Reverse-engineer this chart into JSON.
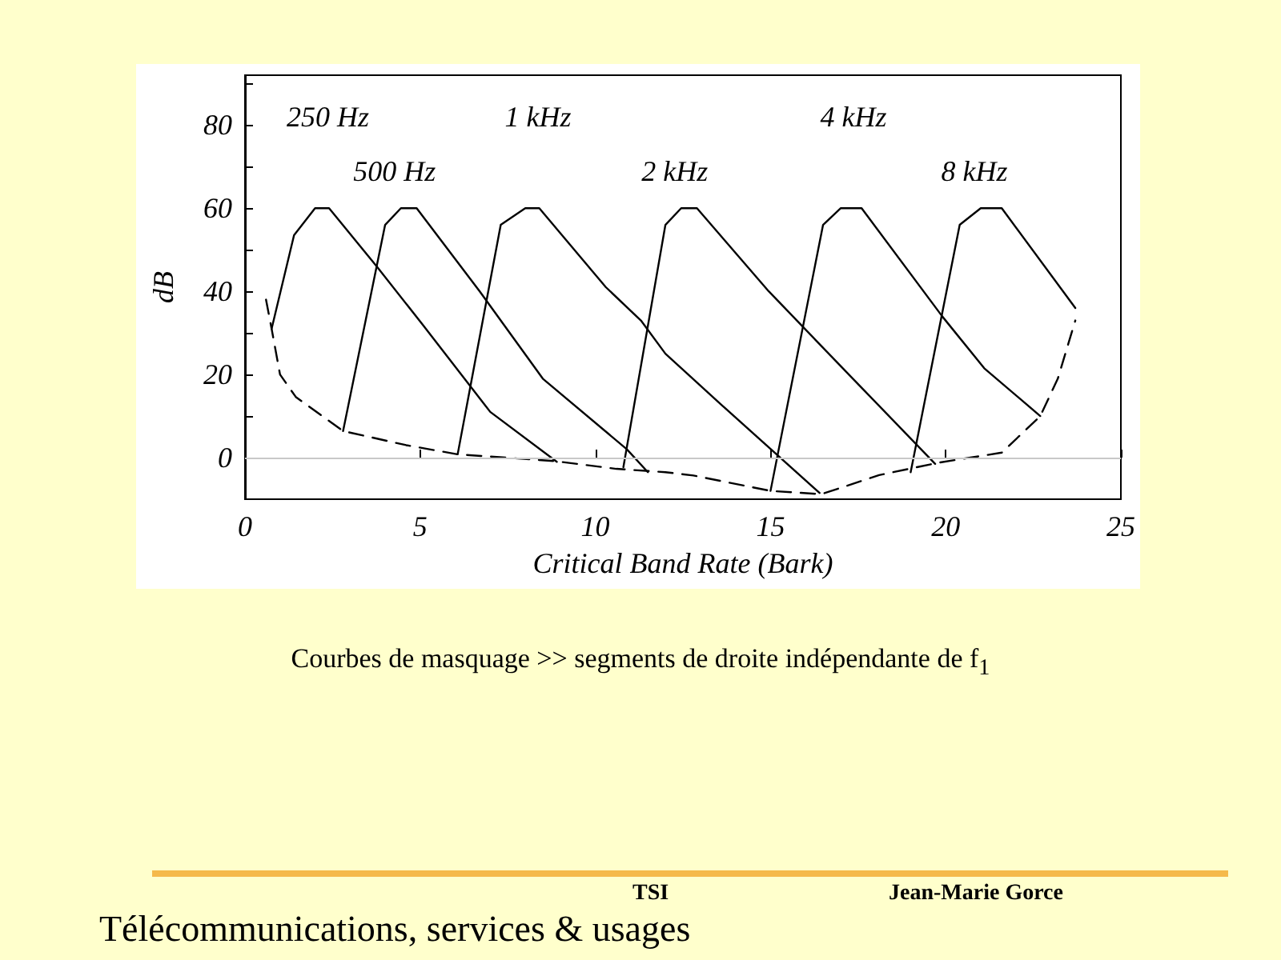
{
  "chart_data": {
    "type": "line",
    "xlabel": "Critical Band Rate (Bark)",
    "ylabel": "dB",
    "xlim": [
      0,
      25
    ],
    "xticks": [
      0,
      5,
      10,
      15,
      20,
      25
    ],
    "ylim": [
      -10,
      92
    ],
    "yticks": [
      0,
      {
        "value": 10,
        "label": null
      },
      20,
      {
        "value": 30,
        "label": null
      },
      40,
      {
        "value": 50,
        "label": null
      },
      60,
      {
        "value": 70,
        "label": null
      },
      80,
      {
        "value": 90,
        "label": null
      }
    ],
    "grid": false,
    "marker": "none",
    "ref_lines": [
      {
        "axis": "y",
        "value": 0,
        "color": "#c8c8c8"
      }
    ],
    "series": [
      {
        "name": "250 Hz",
        "color": "#000000",
        "line_style": "solid",
        "x": [
          0.76,
          1.4,
          2.0,
          2.4,
          3.76,
          5.07,
          7.0,
          8.9
        ],
        "values": [
          31,
          53.5,
          60,
          60,
          46,
          32,
          11,
          -1
        ]
      },
      {
        "name": "500 Hz",
        "color": "#000000",
        "line_style": "solid",
        "x": [
          2.8,
          4.0,
          4.45,
          4.9,
          6.7,
          8.5,
          10.9,
          11.5
        ],
        "values": [
          6.4,
          56,
          60,
          60,
          40,
          19,
          2,
          -3.5
        ]
      },
      {
        "name": "1 kHz",
        "color": "#000000",
        "line_style": "solid",
        "x": [
          6.07,
          7.3,
          8.0,
          8.4,
          10.3,
          11.3,
          12.0,
          13.6,
          16.4
        ],
        "values": [
          0.8,
          56,
          60,
          60,
          41,
          33,
          25,
          12.7,
          -8.5
        ]
      },
      {
        "name": "2 kHz",
        "color": "#000000",
        "line_style": "solid",
        "x": [
          10.8,
          12.0,
          12.45,
          12.9,
          14.95,
          17.35,
          19.7
        ],
        "values": [
          -2.3,
          56,
          60,
          60,
          40,
          19,
          -1.5
        ]
      },
      {
        "name": "4 kHz",
        "color": "#000000",
        "line_style": "solid",
        "x": [
          15.0,
          16.5,
          17.0,
          17.6,
          19.9,
          21.1,
          22.7
        ],
        "values": [
          -8,
          56,
          60,
          60,
          34,
          21.5,
          10
        ]
      },
      {
        "name": "8 kHz",
        "color": "#000000",
        "line_style": "solid",
        "x": [
          19.0,
          20.4,
          21.0,
          21.6,
          23.7
        ],
        "values": [
          -3.5,
          56,
          60,
          60,
          36
        ]
      },
      {
        "color": "#000000",
        "line_style": "dashed",
        "x": [
          0.6,
          0.76,
          1.0,
          1.45,
          2.8,
          4.6,
          6.07,
          8.8,
          10.6,
          12.0,
          12.8,
          15.0,
          16.45,
          18.1,
          19.8,
          21.6,
          22.7,
          23.2,
          23.7
        ],
        "values": [
          38,
          31,
          20,
          14.6,
          6.4,
          3,
          0.8,
          -0.8,
          -2.7,
          -3.5,
          -4.3,
          -8,
          -8.8,
          -4.2,
          -1.2,
          1.2,
          10,
          19,
          33
        ]
      }
    ],
    "annotations": [
      "Courbes de masquage >> segments de droite indépendante de f$_{1}$",
      "TSI",
      "Jean-Marie Gorce",
      "Télécommunications, services & usages"
    ]
  }
}
